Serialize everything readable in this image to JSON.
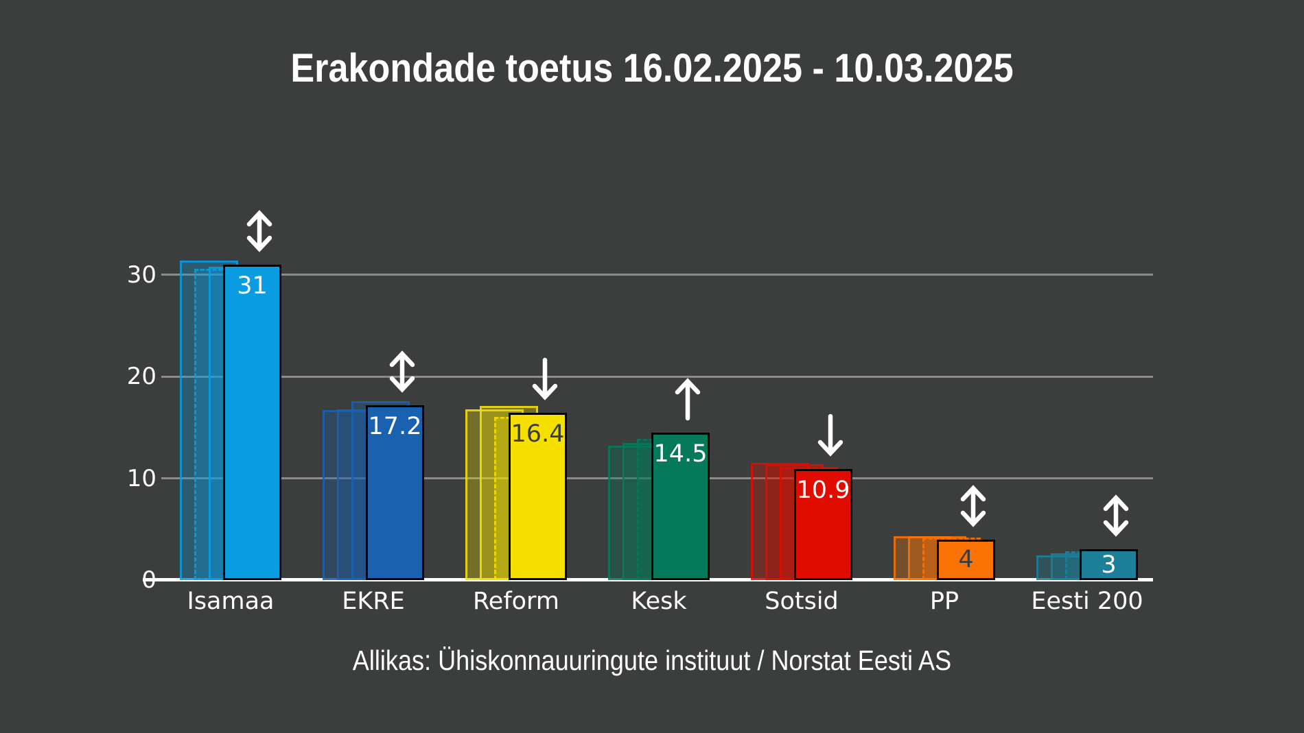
{
  "page": {
    "background": "#3b3e3d"
  },
  "title": {
    "text": "Erakondade toetus 16.02.2025 - 10.03.2025",
    "color": "#ffffff"
  },
  "footer": {
    "text": "Allikas: Ühiskonnauuringute instituut / Norstat Eesti AS",
    "color": "#ffffff"
  },
  "colors": {
    "grid": "#8c8c8c",
    "axis_line": "#ffffff",
    "tick_text": "#ffffff",
    "arrow": "#ffffff",
    "bar_outline": "#000000"
  },
  "chart_data": {
    "type": "bar",
    "title": "Erakondade toetus 16.02.2025 - 10.03.2025",
    "categories": [
      "Isamaa",
      "EKRE",
      "Reform",
      "Kesk",
      "Sotsid",
      "PP",
      "Eesti 200"
    ],
    "series": [
      {
        "name": "ghost-poll-1",
        "values": [
          31.4,
          16.7,
          16.8,
          13.2,
          11.5,
          4.3,
          2.4
        ]
      },
      {
        "name": "ghost-poll-2",
        "values": [
          30.6,
          16.8,
          17.1,
          13.5,
          11.4,
          4.3,
          2.6
        ]
      },
      {
        "name": "ghost-poll-3",
        "values": [
          30.8,
          17.6,
          16.0,
          13.9,
          11.1,
          4.2,
          2.8
        ]
      },
      {
        "name": "current-poll",
        "values": [
          31,
          17.2,
          16.4,
          14.5,
          10.9,
          4,
          3
        ]
      }
    ],
    "value_labels": [
      "31",
      "17.2",
      "16.4",
      "14.5",
      "10.9",
      "4",
      "3"
    ],
    "trend_arrows": [
      "both",
      "both",
      "down",
      "up",
      "down",
      "both",
      "both"
    ],
    "bar_colors": [
      "#0a9ce1",
      "#1a61b0",
      "#f6e000",
      "#057a5a",
      "#e00c00",
      "#fc7305",
      "#1c809b"
    ],
    "value_label_colors": [
      "#ffffff",
      "#ffffff",
      "#3a3d3d",
      "#ffffff",
      "#ffffff",
      "#3a3d3d",
      "#ffffff"
    ],
    "ghost_border_styles": [
      [
        "solid",
        "dashed",
        "solid"
      ],
      [
        "solid",
        "solid",
        "solid"
      ],
      [
        "solid",
        "solid",
        "dashed"
      ],
      [
        "solid",
        "solid",
        "dashed"
      ],
      [
        "solid",
        "solid",
        "solid"
      ],
      [
        "solid",
        "solid",
        "dashed"
      ],
      [
        "solid",
        "solid",
        "dashed"
      ]
    ],
    "xlabel": "",
    "ylabel": "",
    "y_ticks": [
      0,
      10,
      20,
      30
    ],
    "ylim": [
      0,
      36
    ],
    "grid": "horizontal",
    "legend": "none"
  }
}
